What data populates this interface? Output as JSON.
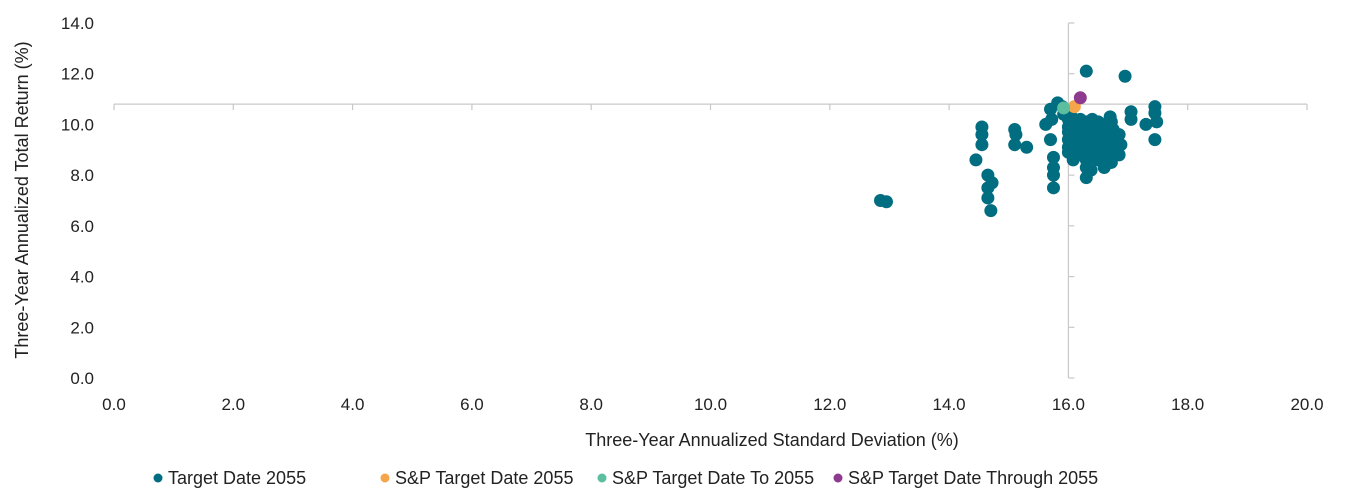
{
  "chart_data": {
    "type": "scatter",
    "xlabel": "Three-Year Annualized Standard Deviation (%)",
    "ylabel": "Three-Year Annualized Total Return (%)",
    "xlim": [
      0,
      20
    ],
    "ylim": [
      0,
      14
    ],
    "x_ticks": [
      "0.0",
      "2.0",
      "4.0",
      "6.0",
      "8.0",
      "10.0",
      "12.0",
      "14.0",
      "16.0",
      "18.0",
      "20.0"
    ],
    "y_ticks": [
      "0.0",
      "2.0",
      "4.0",
      "6.0",
      "8.0",
      "10.0",
      "12.0",
      "14.0"
    ],
    "reference_lines": {
      "x": 16.0,
      "y": 10.8
    },
    "grid": false,
    "legend_position": "bottom",
    "series": [
      {
        "name": "Target Date 2055",
        "color": "#006d80",
        "points": [
          [
            12.85,
            7.0
          ],
          [
            12.95,
            6.95
          ],
          [
            14.45,
            8.6
          ],
          [
            14.55,
            9.9
          ],
          [
            14.55,
            9.6
          ],
          [
            14.55,
            9.2
          ],
          [
            14.65,
            8.0
          ],
          [
            14.65,
            7.5
          ],
          [
            14.65,
            7.1
          ],
          [
            14.7,
            6.6
          ],
          [
            14.72,
            7.7
          ],
          [
            15.1,
            9.8
          ],
          [
            15.12,
            9.6
          ],
          [
            15.1,
            9.2
          ],
          [
            15.3,
            9.1
          ],
          [
            15.62,
            10.0
          ],
          [
            15.7,
            10.6
          ],
          [
            15.72,
            10.2
          ],
          [
            15.7,
            9.4
          ],
          [
            15.75,
            8.7
          ],
          [
            15.75,
            8.3
          ],
          [
            15.75,
            8.0
          ],
          [
            15.75,
            7.5
          ],
          [
            15.82,
            10.85
          ],
          [
            15.9,
            10.7
          ],
          [
            15.92,
            10.4
          ],
          [
            16.0,
            10.2
          ],
          [
            16.0,
            9.9
          ],
          [
            16.0,
            9.7
          ],
          [
            16.0,
            9.4
          ],
          [
            16.0,
            9.1
          ],
          [
            16.0,
            8.9
          ],
          [
            16.05,
            10.3
          ],
          [
            16.1,
            10.1
          ],
          [
            16.12,
            9.8
          ],
          [
            16.1,
            9.5
          ],
          [
            16.12,
            9.2
          ],
          [
            16.1,
            8.9
          ],
          [
            16.08,
            8.6
          ],
          [
            16.2,
            10.2
          ],
          [
            16.22,
            9.9
          ],
          [
            16.25,
            9.6
          ],
          [
            16.2,
            9.3
          ],
          [
            16.25,
            9.0
          ],
          [
            16.2,
            8.8
          ],
          [
            16.3,
            12.1
          ],
          [
            16.3,
            10.1
          ],
          [
            16.35,
            9.8
          ],
          [
            16.3,
            9.5
          ],
          [
            16.35,
            9.2
          ],
          [
            16.3,
            8.9
          ],
          [
            16.3,
            8.6
          ],
          [
            16.3,
            8.3
          ],
          [
            16.3,
            7.9
          ],
          [
            16.4,
            10.2
          ],
          [
            16.42,
            9.9
          ],
          [
            16.45,
            9.6
          ],
          [
            16.4,
            9.3
          ],
          [
            16.45,
            9.0
          ],
          [
            16.4,
            8.7
          ],
          [
            16.38,
            8.2
          ],
          [
            16.5,
            10.1
          ],
          [
            16.52,
            9.8
          ],
          [
            16.55,
            9.5
          ],
          [
            16.5,
            9.2
          ],
          [
            16.55,
            8.9
          ],
          [
            16.5,
            8.6
          ],
          [
            16.6,
            10.0
          ],
          [
            16.62,
            9.7
          ],
          [
            16.65,
            9.4
          ],
          [
            16.6,
            9.1
          ],
          [
            16.62,
            8.8
          ],
          [
            16.6,
            8.3
          ],
          [
            16.7,
            10.3
          ],
          [
            16.72,
            10.1
          ],
          [
            16.75,
            9.8
          ],
          [
            16.7,
            9.5
          ],
          [
            16.72,
            9.2
          ],
          [
            16.7,
            8.9
          ],
          [
            16.72,
            8.5
          ],
          [
            16.85,
            9.6
          ],
          [
            16.88,
            9.2
          ],
          [
            16.85,
            8.8
          ],
          [
            16.95,
            11.9
          ],
          [
            17.05,
            10.5
          ],
          [
            17.05,
            10.2
          ],
          [
            17.3,
            10.0
          ],
          [
            17.45,
            10.7
          ],
          [
            17.45,
            10.45
          ],
          [
            17.48,
            10.1
          ],
          [
            17.45,
            9.4
          ]
        ]
      },
      {
        "name": "S&P Target Date 2055",
        "color": "#f5a54a",
        "points": [
          [
            16.1,
            10.7
          ]
        ]
      },
      {
        "name": "S&P Target Date To 2055",
        "color": "#5bbf9f",
        "points": [
          [
            15.92,
            10.65
          ]
        ]
      },
      {
        "name": "S&P Target Date Through 2055",
        "color": "#8e3a8f",
        "points": [
          [
            16.2,
            11.05
          ]
        ]
      }
    ]
  }
}
